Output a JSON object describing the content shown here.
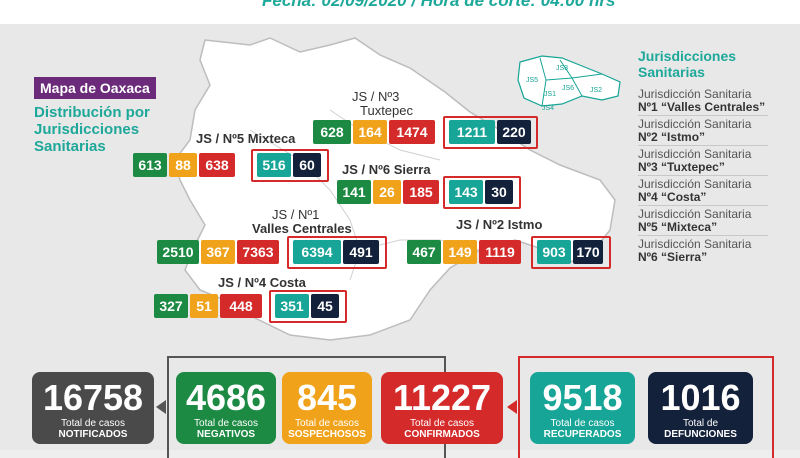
{
  "header": {
    "partial_text": "Fecha: 02/09/2020 / Hora de corte: 04:00 hrs"
  },
  "map": {
    "title": "Mapa de Oaxaca",
    "subtitle": "Distribución por Jurisdicciones Sanitarias"
  },
  "jurisdictions": {
    "js3": {
      "label_top": "JS / Nº3",
      "label_bottom": "Tuxtepec",
      "values": [
        "628",
        "164",
        "1474",
        "1211",
        "220"
      ]
    },
    "js5": {
      "label": "JS / Nº5 Mixteca",
      "values": [
        "613",
        "88",
        "638",
        "516",
        "60"
      ]
    },
    "js6": {
      "label": "JS / Nº6 Sierra",
      "values": [
        "141",
        "26",
        "185",
        "143",
        "30"
      ]
    },
    "js1": {
      "label_top": "JS / Nº1",
      "label_bottom": "Valles Centrales",
      "values": [
        "2510",
        "367",
        "7363",
        "6394",
        "491"
      ]
    },
    "js2": {
      "label": "JS / Nº2 Istmo",
      "values": [
        "467",
        "149",
        "1119",
        "903",
        "170"
      ]
    },
    "js4": {
      "label": "JS / Nº4 Costa",
      "values": [
        "327",
        "51",
        "448",
        "351",
        "45"
      ]
    }
  },
  "minimap": {
    "labels": [
      "JS5",
      "JS3",
      "JS1",
      "JS6",
      "JS2",
      "JS4"
    ]
  },
  "legend": {
    "title": "Jurisdicciones Sanitarias",
    "items": [
      {
        "line1": "Jurisdicción Sanitaria",
        "line2": "Nº1 “Valles Centrales”"
      },
      {
        "line1": "Jurisdicción Sanitaria",
        "line2": "Nº2 “Istmo”"
      },
      {
        "line1": "Jurisdicción Sanitaria",
        "line2": "Nº3 “Tuxtepec”"
      },
      {
        "line1": "Jurisdicción Sanitaria",
        "line2": "Nº4 “Costa”"
      },
      {
        "line1": "Jurisdicción Sanitaria",
        "line2": "Nº5 “Mixteca”"
      },
      {
        "line1": "Jurisdicción Sanitaria",
        "line2": "Nº6 “Sierra”"
      }
    ]
  },
  "totals": [
    {
      "value": "16758",
      "line1": "Total de casos",
      "line2": "NOTIFICADOS",
      "color": "#4a4a4a"
    },
    {
      "value": "4686",
      "line1": "Total de casos",
      "line2": "NEGATIVOS",
      "color": "#1c8a43"
    },
    {
      "value": "845",
      "line1": "Total de casos",
      "line2": "SOSPECHOSOS",
      "color": "#f0a21a"
    },
    {
      "value": "11227",
      "line1": "Total de casos",
      "line2": "CONFIRMADOS",
      "color": "#d42a2a"
    },
    {
      "value": "9518",
      "line1": "Total de casos",
      "line2": "RECUPERADOS",
      "color": "#17a597"
    },
    {
      "value": "1016",
      "line1": "Total de",
      "line2": "DEFUNCIONES",
      "color": "#14213b"
    }
  ]
}
